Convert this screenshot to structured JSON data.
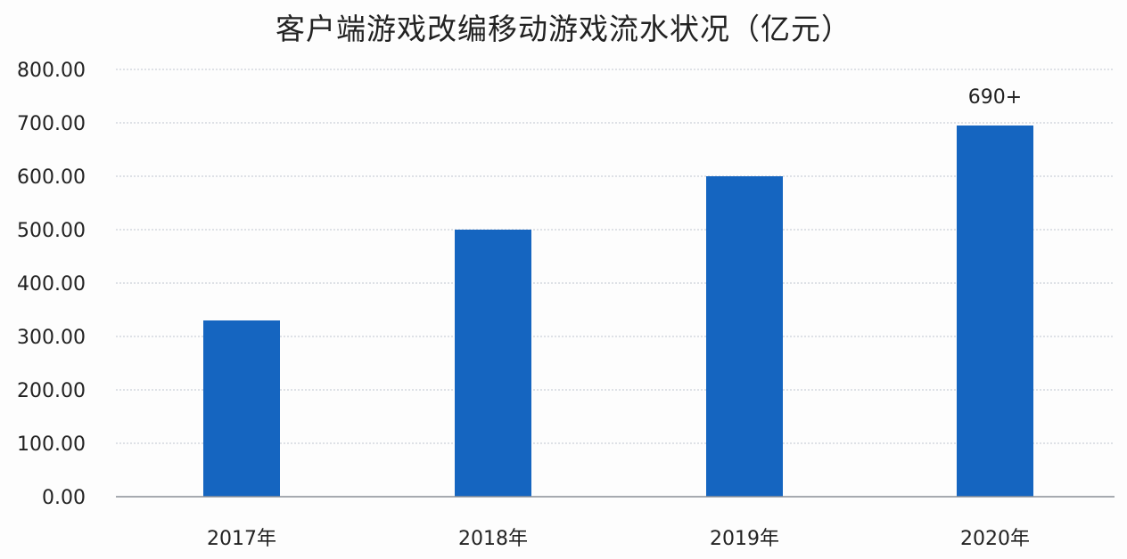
{
  "chart_data": {
    "type": "bar",
    "title": "客户端游戏改编移动游戏流水状况（亿元）",
    "xlabel": "",
    "ylabel": "",
    "categories": [
      "2017年",
      "2018年",
      "2019年",
      "2020年"
    ],
    "values": [
      330,
      500,
      600,
      695
    ],
    "data_labels": [
      "",
      "",
      "",
      "690+"
    ],
    "y_tick_labels": [
      "0.00",
      "100.00",
      "200.00",
      "300.00",
      "400.00",
      "500.00",
      "600.00",
      "700.00",
      "800.00"
    ],
    "y_ticks": [
      0,
      100,
      200,
      300,
      400,
      500,
      600,
      700,
      800
    ],
    "ylim": [
      0,
      800
    ],
    "grid": true,
    "bar_color": "#1565c0",
    "grid_color": "#d4d8de",
    "axis_color": "#8a8f96"
  }
}
